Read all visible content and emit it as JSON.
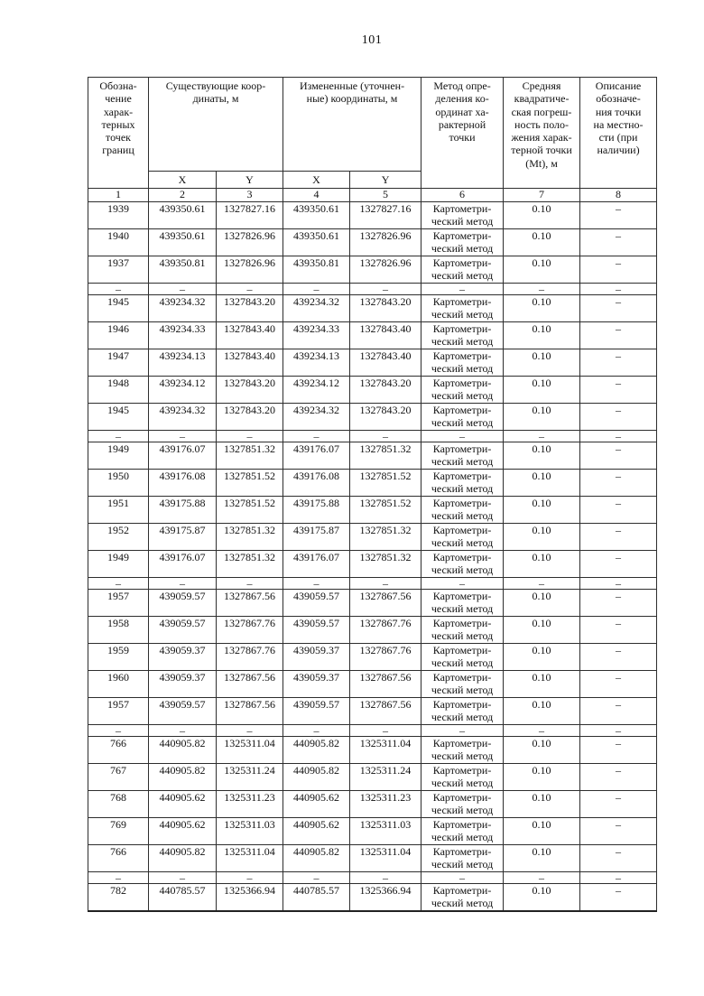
{
  "page_number": "101",
  "table": {
    "column_keys": [
      "point",
      "x-existing",
      "y-existing",
      "x-changed",
      "y-changed",
      "method",
      "error",
      "description"
    ],
    "header": {
      "point": "Обозна-\nчение\nхарак-\nтерных\nточек\nграниц",
      "existing": "Существующие коор-\nдинаты, м",
      "changed": "Измененные (уточнен-\nные) координаты, м",
      "method": "Метод опре-\nделения ко-\nординат ха-\nрактерной\nточки",
      "error": "Средняя\nквадратиче-\nская погреш-\nность поло-\nжения харак-\nтерной точки\n(Mt), м",
      "description": "Описание\nобозначе-\nния точки\nна местно-\nсти (при\nналичии)",
      "x_label": "X",
      "y_label": "Y",
      "numbers": [
        "1",
        "2",
        "3",
        "4",
        "5",
        "6",
        "7",
        "8"
      ]
    },
    "rows": [
      {
        "cells": [
          "1939",
          "439350.61",
          "1327827.16",
          "439350.61",
          "1327827.16",
          "Картометри-\nческий метод",
          "0.10",
          "–"
        ]
      },
      {
        "cells": [
          "1940",
          "439350.61",
          "1327826.96",
          "439350.61",
          "1327826.96",
          "Картометри-\nческий метод",
          "0.10",
          "–"
        ]
      },
      {
        "cells": [
          "1937",
          "439350.81",
          "1327826.96",
          "439350.81",
          "1327826.96",
          "Картометри-\nческий метод",
          "0.10",
          "–"
        ]
      },
      {
        "dash": true,
        "cells": [
          "–",
          "–",
          "–",
          "–",
          "–",
          "–",
          "–",
          "–"
        ]
      },
      {
        "cells": [
          "1945",
          "439234.32",
          "1327843.20",
          "439234.32",
          "1327843.20",
          "Картометри-\nческий метод",
          "0.10",
          "–"
        ]
      },
      {
        "cells": [
          "1946",
          "439234.33",
          "1327843.40",
          "439234.33",
          "1327843.40",
          "Картометри-\nческий метод",
          "0.10",
          "–"
        ]
      },
      {
        "cells": [
          "1947",
          "439234.13",
          "1327843.40",
          "439234.13",
          "1327843.40",
          "Картометри-\nческий метод",
          "0.10",
          "–"
        ]
      },
      {
        "cells": [
          "1948",
          "439234.12",
          "1327843.20",
          "439234.12",
          "1327843.20",
          "Картометри-\nческий метод",
          "0.10",
          "–"
        ]
      },
      {
        "cells": [
          "1945",
          "439234.32",
          "1327843.20",
          "439234.32",
          "1327843.20",
          "Картометри-\nческий метод",
          "0.10",
          "–"
        ]
      },
      {
        "dash": true,
        "cells": [
          "–",
          "–",
          "–",
          "–",
          "–",
          "–",
          "–",
          "–"
        ]
      },
      {
        "cells": [
          "1949",
          "439176.07",
          "1327851.32",
          "439176.07",
          "1327851.32",
          "Картометри-\nческий метод",
          "0.10",
          "–"
        ]
      },
      {
        "cells": [
          "1950",
          "439176.08",
          "1327851.52",
          "439176.08",
          "1327851.52",
          "Картометри-\nческий метод",
          "0.10",
          "–"
        ]
      },
      {
        "cells": [
          "1951",
          "439175.88",
          "1327851.52",
          "439175.88",
          "1327851.52",
          "Картометри-\nческий метод",
          "0.10",
          "–"
        ]
      },
      {
        "cells": [
          "1952",
          "439175.87",
          "1327851.32",
          "439175.87",
          "1327851.32",
          "Картометри-\nческий метод",
          "0.10",
          "–"
        ]
      },
      {
        "cells": [
          "1949",
          "439176.07",
          "1327851.32",
          "439176.07",
          "1327851.32",
          "Картометри-\nческий метод",
          "0.10",
          "–"
        ]
      },
      {
        "dash": true,
        "cells": [
          "–",
          "–",
          "–",
          "–",
          "–",
          "–",
          "–",
          "–"
        ]
      },
      {
        "cells": [
          "1957",
          "439059.57",
          "1327867.56",
          "439059.57",
          "1327867.56",
          "Картометри-\nческий метод",
          "0.10",
          "–"
        ]
      },
      {
        "cells": [
          "1958",
          "439059.57",
          "1327867.76",
          "439059.57",
          "1327867.76",
          "Картометри-\nческий метод",
          "0.10",
          "–"
        ]
      },
      {
        "cells": [
          "1959",
          "439059.37",
          "1327867.76",
          "439059.37",
          "1327867.76",
          "Картометри-\nческий метод",
          "0.10",
          "–"
        ]
      },
      {
        "cells": [
          "1960",
          "439059.37",
          "1327867.56",
          "439059.37",
          "1327867.56",
          "Картометри-\nческий метод",
          "0.10",
          "–"
        ]
      },
      {
        "cells": [
          "1957",
          "439059.57",
          "1327867.56",
          "439059.57",
          "1327867.56",
          "Картометри-\nческий метод",
          "0.10",
          "–"
        ]
      },
      {
        "dash": true,
        "cells": [
          "–",
          "–",
          "–",
          "–",
          "–",
          "–",
          "–",
          "–"
        ]
      },
      {
        "cells": [
          "766",
          "440905.82",
          "1325311.04",
          "440905.82",
          "1325311.04",
          "Картометри-\nческий метод",
          "0.10",
          "–"
        ]
      },
      {
        "cells": [
          "767",
          "440905.82",
          "1325311.24",
          "440905.82",
          "1325311.24",
          "Картометри-\nческий метод",
          "0.10",
          "–"
        ]
      },
      {
        "cells": [
          "768",
          "440905.62",
          "1325311.23",
          "440905.62",
          "1325311.23",
          "Картометри-\nческий метод",
          "0.10",
          "–"
        ]
      },
      {
        "cells": [
          "769",
          "440905.62",
          "1325311.03",
          "440905.62",
          "1325311.03",
          "Картометри-\nческий метод",
          "0.10",
          "–"
        ]
      },
      {
        "cells": [
          "766",
          "440905.82",
          "1325311.04",
          "440905.82",
          "1325311.04",
          "Картометри-\nческий метод",
          "0.10",
          "–"
        ]
      },
      {
        "dash": true,
        "cells": [
          "–",
          "–",
          "–",
          "–",
          "–",
          "–",
          "–",
          "–"
        ]
      },
      {
        "cells": [
          "782",
          "440785.57",
          "1325366.94",
          "440785.57",
          "1325366.94",
          "Картометри-\nческий метод",
          "0.10",
          "–"
        ]
      }
    ]
  }
}
